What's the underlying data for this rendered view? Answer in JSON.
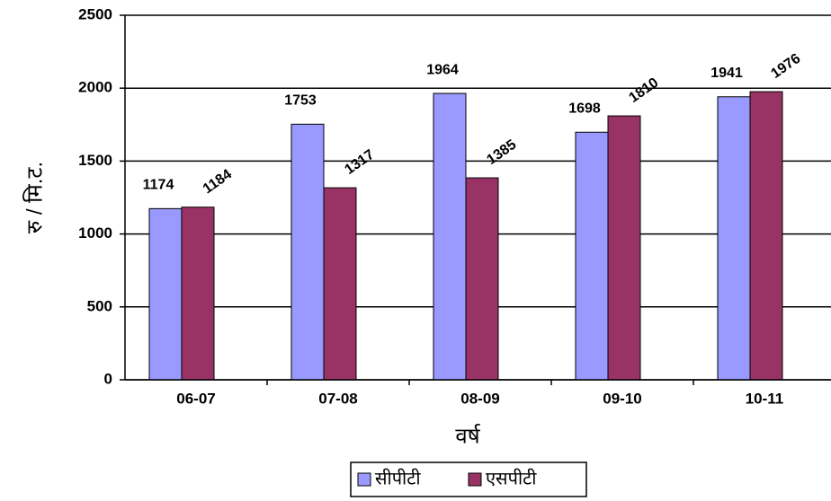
{
  "chart_data": {
    "type": "bar",
    "y_label": "रु / मि.ट.",
    "x_label": "वर्ष",
    "categories": [
      "06-07",
      "07-08",
      "08-09",
      "09-10",
      "10-11"
    ],
    "series": [
      {
        "name": "सीपीटी",
        "color": "#9999ff",
        "values": [
          1174,
          1753,
          1964,
          1698,
          1941
        ]
      },
      {
        "name": "एसपीटी",
        "color": "#993366",
        "values": [
          1184,
          1317,
          1385,
          1810,
          1976
        ]
      }
    ],
    "ylim": [
      0,
      2500
    ],
    "yticks": [
      0,
      500,
      1000,
      1500,
      2000,
      2500
    ],
    "grid": true
  }
}
